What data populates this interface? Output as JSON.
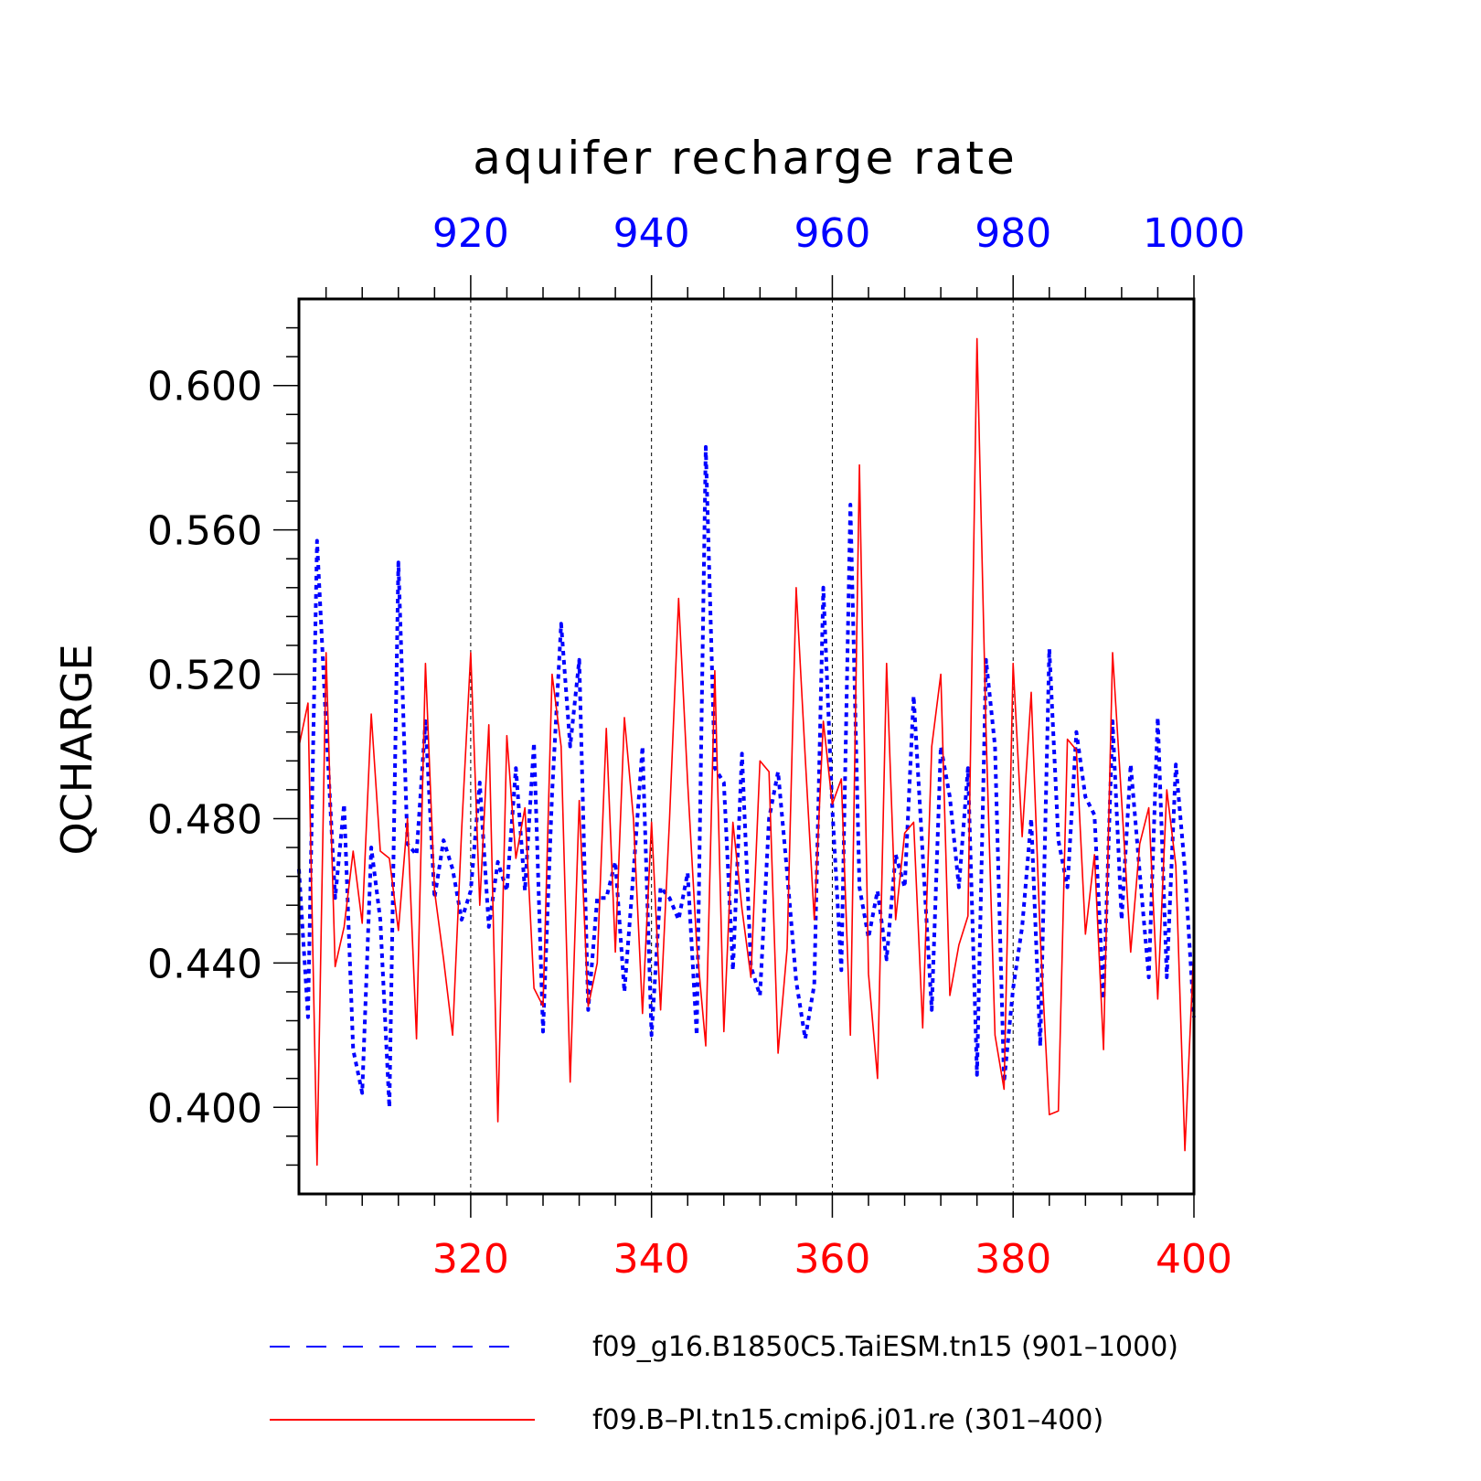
{
  "chart_data": {
    "type": "line",
    "title": "aquifer recharge rate",
    "ylabel": "QCHARGE",
    "ylim": [
      0.376,
      0.624
    ],
    "y_ticks": [
      "0.400",
      "0.440",
      "0.480",
      "0.520",
      "0.560",
      "0.600"
    ],
    "top_axis": {
      "range": [
        901,
        1000
      ],
      "ticks": [
        "920",
        "940",
        "960",
        "980",
        "1000"
      ],
      "color": "#0000ff"
    },
    "bottom_axis": {
      "range": [
        301,
        400
      ],
      "ticks": [
        "320",
        "340",
        "360",
        "380",
        "400"
      ],
      "color": "#ff0000"
    },
    "grid": "vertical dashed at major x ticks",
    "legend_position": "bottom",
    "series": [
      {
        "name": "f09_g16.B1850C5.TaiESM.tn15 (901–1000)",
        "axis": "top",
        "color": "#0000ff",
        "style": "dotted",
        "x": [
          901,
          902,
          903,
          904,
          905,
          906,
          907,
          908,
          909,
          910,
          911,
          912,
          913,
          914,
          915,
          916,
          917,
          918,
          919,
          920,
          921,
          922,
          923,
          924,
          925,
          926,
          927,
          928,
          929,
          930,
          931,
          932,
          933,
          934,
          935,
          936,
          937,
          938,
          939,
          940,
          941,
          942,
          943,
          944,
          945,
          946,
          947,
          948,
          949,
          950,
          951,
          952,
          953,
          954,
          955,
          956,
          957,
          958,
          959,
          960,
          961,
          962,
          963,
          964,
          965,
          966,
          967,
          968,
          969,
          970,
          971,
          972,
          973,
          974,
          975,
          976,
          977,
          978,
          979,
          980,
          981,
          982,
          983,
          984,
          985,
          986,
          987,
          988,
          989,
          990,
          991,
          992,
          993,
          994,
          995,
          996,
          997,
          998,
          999,
          1000
        ],
        "values": [
          0.466,
          0.425,
          0.557,
          0.506,
          0.458,
          0.484,
          0.416,
          0.404,
          0.472,
          0.452,
          0.4,
          0.551,
          0.473,
          0.47,
          0.507,
          0.458,
          0.474,
          0.466,
          0.452,
          0.46,
          0.49,
          0.45,
          0.468,
          0.46,
          0.494,
          0.46,
          0.501,
          0.421,
          0.487,
          0.534,
          0.5,
          0.524,
          0.427,
          0.458,
          0.458,
          0.468,
          0.432,
          0.465,
          0.5,
          0.42,
          0.461,
          0.458,
          0.452,
          0.465,
          0.42,
          0.583,
          0.494,
          0.49,
          0.438,
          0.498,
          0.439,
          0.431,
          0.48,
          0.493,
          0.465,
          0.435,
          0.419,
          0.434,
          0.544,
          0.483,
          0.438,
          0.567,
          0.461,
          0.447,
          0.46,
          0.441,
          0.47,
          0.461,
          0.514,
          0.47,
          0.427,
          0.5,
          0.486,
          0.461,
          0.494,
          0.409,
          0.524,
          0.5,
          0.407,
          0.433,
          0.45,
          0.48,
          0.417,
          0.527,
          0.474,
          0.461,
          0.504,
          0.486,
          0.481,
          0.43,
          0.507,
          0.452,
          0.495,
          0.465,
          0.436,
          0.508,
          0.436,
          0.495,
          0.466,
          0.425
        ]
      },
      {
        "name": "f09.B–PI.tn15.cmip6.j01.re (301–400)",
        "axis": "bottom",
        "color": "#ff0000",
        "style": "solid",
        "x": [
          301,
          302,
          303,
          304,
          305,
          306,
          307,
          308,
          309,
          310,
          311,
          312,
          313,
          314,
          315,
          316,
          317,
          318,
          319,
          320,
          321,
          322,
          323,
          324,
          325,
          326,
          327,
          328,
          329,
          330,
          331,
          332,
          333,
          334,
          335,
          336,
          337,
          338,
          339,
          340,
          341,
          342,
          343,
          344,
          345,
          346,
          347,
          348,
          349,
          350,
          351,
          352,
          353,
          354,
          355,
          356,
          357,
          358,
          359,
          360,
          361,
          362,
          363,
          364,
          365,
          366,
          367,
          368,
          369,
          370,
          371,
          372,
          373,
          374,
          375,
          376,
          377,
          378,
          379,
          380,
          381,
          382,
          383,
          384,
          385,
          386,
          387,
          388,
          389,
          390,
          391,
          392,
          393,
          394,
          395,
          396,
          397,
          398,
          399,
          400
        ],
        "values": [
          0.5,
          0.512,
          0.384,
          0.526,
          0.439,
          0.45,
          0.471,
          0.451,
          0.509,
          0.471,
          0.469,
          0.449,
          0.48,
          0.419,
          0.523,
          0.46,
          0.441,
          0.42,
          0.477,
          0.526,
          0.456,
          0.506,
          0.396,
          0.503,
          0.469,
          0.483,
          0.433,
          0.428,
          0.52,
          0.5,
          0.407,
          0.485,
          0.428,
          0.44,
          0.505,
          0.443,
          0.508,
          0.48,
          0.426,
          0.479,
          0.427,
          0.48,
          0.541,
          0.49,
          0.445,
          0.417,
          0.521,
          0.421,
          0.479,
          0.455,
          0.436,
          0.496,
          0.493,
          0.415,
          0.444,
          0.544,
          0.497,
          0.452,
          0.507,
          0.484,
          0.491,
          0.42,
          0.578,
          0.437,
          0.408,
          0.523,
          0.452,
          0.476,
          0.479,
          0.422,
          0.5,
          0.52,
          0.431,
          0.445,
          0.453,
          0.613,
          0.504,
          0.42,
          0.405,
          0.523,
          0.475,
          0.515,
          0.447,
          0.398,
          0.399,
          0.502,
          0.499,
          0.448,
          0.47,
          0.416,
          0.526,
          0.485,
          0.443,
          0.473,
          0.483,
          0.43,
          0.488,
          0.467,
          0.388,
          0.445
        ]
      }
    ]
  }
}
